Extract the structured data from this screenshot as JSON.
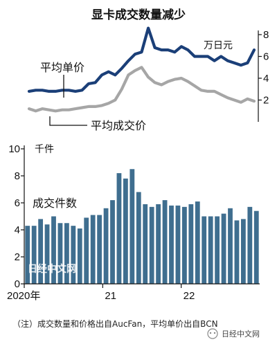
{
  "title": "显卡成交数量减少",
  "note": "（注）成交数量和价格出自AucFan，平均单价出自BCN",
  "watermark": "日经中文网",
  "logo_text": "日经中文网",
  "chart_data": [
    {
      "type": "line",
      "title": "显卡成交数量减少",
      "ylabel": "万日元",
      "ylim": [
        0,
        8
      ],
      "yticks": [
        2,
        4,
        6,
        8
      ],
      "grid": false,
      "x": [
        1,
        2,
        3,
        4,
        5,
        6,
        7,
        8,
        9,
        10,
        11,
        12,
        13,
        14,
        15,
        16,
        17,
        18,
        19,
        20,
        21,
        22,
        23,
        24,
        25,
        26,
        27,
        28,
        29,
        30,
        31,
        32,
        33,
        34,
        35
      ],
      "series": [
        {
          "name": "平均单价",
          "color": "#1b3f78",
          "values": [
            2.8,
            2.9,
            2.9,
            2.8,
            2.8,
            2.9,
            2.9,
            2.8,
            2.9,
            3.5,
            3.6,
            4.3,
            4.6,
            4.3,
            4.9,
            5.6,
            6.2,
            6.4,
            8.6,
            6.8,
            6.6,
            6.6,
            6.4,
            6.9,
            6.6,
            6.0,
            6.0,
            6.0,
            5.6,
            6.0,
            5.6,
            5.4,
            5.2,
            5.4,
            6.6
          ]
        },
        {
          "name": "平均成交价",
          "color": "#a6a6a6",
          "values": [
            1.2,
            1.0,
            1.2,
            1.1,
            1.0,
            1.1,
            1.1,
            1.2,
            1.3,
            1.4,
            1.4,
            1.5,
            1.7,
            2.0,
            3.0,
            4.3,
            4.7,
            5.0,
            4.1,
            3.6,
            3.4,
            3.7,
            3.9,
            4.0,
            3.7,
            3.3,
            2.9,
            2.8,
            2.8,
            2.5,
            2.2,
            2.0,
            1.8,
            2.1,
            1.9
          ]
        }
      ]
    },
    {
      "type": "bar",
      "ylabel": "千件",
      "series_label": "成交件数",
      "ylim": [
        0,
        10
      ],
      "yticks": [
        0,
        2,
        4,
        6,
        8,
        10
      ],
      "x_labels": [
        {
          "index": 0,
          "label": "2020年"
        },
        {
          "index": 12,
          "label": "21"
        },
        {
          "index": 24,
          "label": "22"
        }
      ],
      "color": "#3f6e8f",
      "values": [
        4.3,
        4.3,
        4.8,
        4.4,
        5.0,
        4.5,
        4.5,
        4.3,
        4.1,
        4.9,
        5.1,
        5.1,
        5.6,
        6.2,
        8.2,
        7.8,
        8.5,
        6.8,
        5.9,
        5.7,
        5.9,
        6.2,
        5.8,
        5.8,
        5.7,
        5.9,
        6.1,
        5.0,
        5.0,
        5.0,
        5.2,
        5.6,
        4.7,
        4.8,
        5.7,
        5.4
      ]
    }
  ]
}
